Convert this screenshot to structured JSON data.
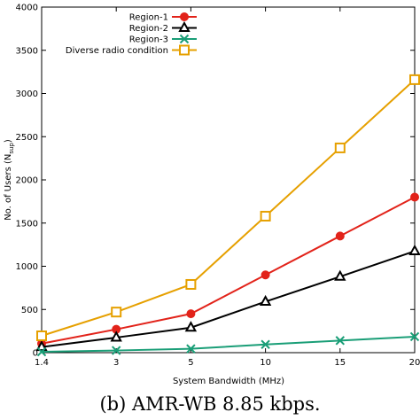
{
  "chart_data": {
    "type": "line",
    "xlabel": "System Bandwidth (MHz)",
    "ylabel": "No. of Users (N_sup)",
    "ylabel_main": "No. of Users (N",
    "ylabel_sub": "sup",
    "ylabel_close": ")",
    "x": [
      "1.4",
      "3",
      "5",
      "10",
      "15",
      "20"
    ],
    "ylim": [
      0,
      4000
    ],
    "yticks": [
      0,
      500,
      1000,
      1500,
      2000,
      2500,
      3000,
      3500,
      4000
    ],
    "grid": false,
    "legend_position": "top-right",
    "series": [
      {
        "name": "Region-1",
        "color": "#e2231a",
        "marker": "circle",
        "values": [
          105,
          270,
          450,
          900,
          1350,
          1800
        ]
      },
      {
        "name": "Region-2",
        "color": "#000000",
        "marker": "triangle",
        "values": [
          65,
          175,
          290,
          590,
          880,
          1175
        ]
      },
      {
        "name": "Region-3",
        "color": "#1a9e77",
        "marker": "x",
        "values": [
          10,
          25,
          45,
          95,
          140,
          185
        ]
      },
      {
        "name": "Diverse radio condition",
        "color": "#e6a000",
        "marker": "square",
        "values": [
          195,
          470,
          790,
          1580,
          2370,
          3160
        ]
      }
    ]
  },
  "caption": "(b) AMR-WB 8.85 kbps."
}
